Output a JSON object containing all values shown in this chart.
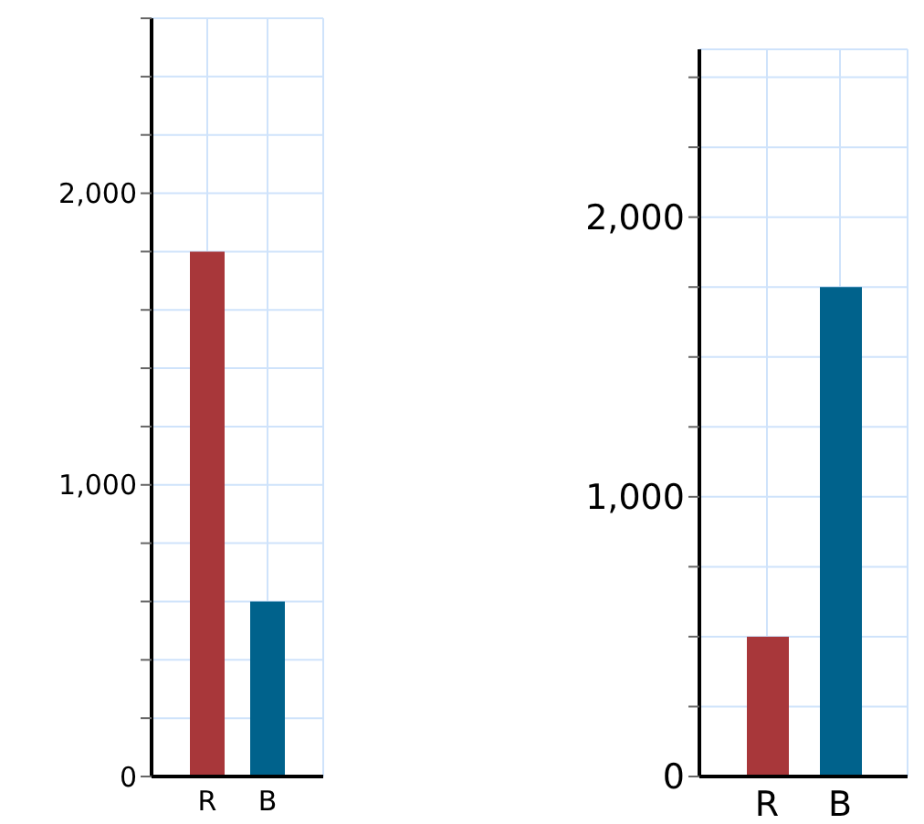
{
  "chart_data": [
    {
      "type": "bar",
      "categories": [
        "R",
        "B"
      ],
      "values": [
        1800,
        600
      ],
      "colors": [
        "#a8373a",
        "#00628c"
      ],
      "ylim": [
        0,
        2600
      ],
      "yticks": [
        {
          "value": 0,
          "label": "0"
        },
        {
          "value": 200,
          "label": null
        },
        {
          "value": 400,
          "label": null
        },
        {
          "value": 600,
          "label": null
        },
        {
          "value": 800,
          "label": null
        },
        {
          "value": 1000,
          "label": "1,000"
        },
        {
          "value": 1200,
          "label": null
        },
        {
          "value": 1400,
          "label": null
        },
        {
          "value": 1600,
          "label": null
        },
        {
          "value": 1800,
          "label": null
        },
        {
          "value": 2000,
          "label": "2,000"
        },
        {
          "value": 2200,
          "label": null
        },
        {
          "value": 2400,
          "label": null
        },
        {
          "value": 2600,
          "label": null
        }
      ],
      "grid": true
    },
    {
      "type": "bar",
      "categories": [
        "R",
        "B"
      ],
      "values": [
        500,
        1750
      ],
      "colors": [
        "#a8373a",
        "#00628c"
      ],
      "ylim": [
        0,
        2600
      ],
      "yticks": [
        {
          "value": 0,
          "label": "0"
        },
        {
          "value": 250,
          "label": null
        },
        {
          "value": 500,
          "label": null
        },
        {
          "value": 750,
          "label": null
        },
        {
          "value": 1000,
          "label": "1,000"
        },
        {
          "value": 1250,
          "label": null
        },
        {
          "value": 1500,
          "label": null
        },
        {
          "value": 1750,
          "label": null
        },
        {
          "value": 2000,
          "label": "2,000"
        },
        {
          "value": 2250,
          "label": null
        },
        {
          "value": 2500,
          "label": null
        }
      ],
      "grid": true
    }
  ]
}
